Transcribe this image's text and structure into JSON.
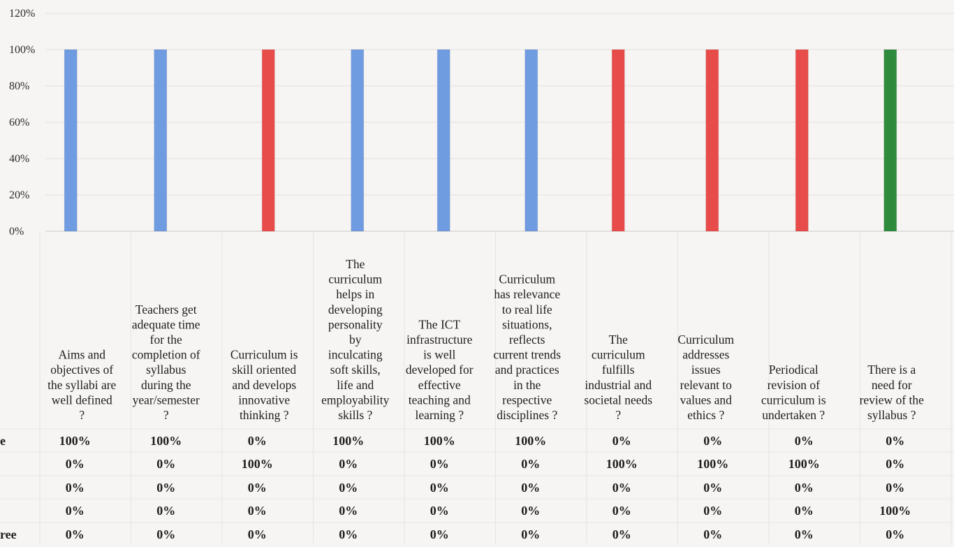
{
  "chart_data": {
    "type": "bar",
    "title": "",
    "xlabel": "",
    "ylabel": "",
    "ylim": [
      0,
      120
    ],
    "y_ticks": [
      "0%",
      "20%",
      "40%",
      "60%",
      "80%",
      "100%",
      "120%"
    ],
    "grid": true,
    "legend": "none",
    "categories": [
      "Aims and objectives of the syllabi are well defined ?",
      "Teachers get adequate time for the completion of syllabus during the year/semester ?",
      "Curriculum is skill oriented and develops innovative thinking ?",
      "The curriculum helps in developing personality by inculcating soft skills, life and employability skills ?",
      "The ICT infrastructure is well developed for effective teaching and learning ?",
      "Curriculum has relevance to real life situations, reflects current trends and practices in the respective disciplines ?",
      "The curriculum fulfills industrial and societal needs ?",
      "Curriculum addresses issues relevant to values and ethics ?",
      "Periodical revision of curriculum is undertaken ?",
      "There is a need for review of the syllabus ?"
    ],
    "category_lines": [
      [
        "Aims and",
        "objectives of",
        "the syllabi are",
        "well defined",
        "?"
      ],
      [
        "Teachers get",
        "adequate time",
        "for the",
        "completion of",
        "syllabus",
        "during the",
        "year/semester",
        "?"
      ],
      [
        "Curriculum is",
        "skill oriented",
        "and develops",
        "innovative",
        "thinking ?"
      ],
      [
        "The",
        "curriculum",
        "helps in",
        "developing",
        "personality",
        "by",
        "inculcating",
        "soft skills,",
        "life and",
        "employability",
        "skills ?"
      ],
      [
        "The ICT",
        "infrastructure",
        "is well",
        "developed for",
        "effective",
        "teaching and",
        "learning ?"
      ],
      [
        "Curriculum",
        "has relevance",
        "to real life",
        "situations,",
        "reflects",
        "current trends",
        "and practices",
        "in the",
        "respective",
        "disciplines ?"
      ],
      [
        "The",
        "curriculum",
        "fulfills",
        "industrial and",
        "societal needs",
        "?"
      ],
      [
        "Curriculum",
        "addresses",
        "issues",
        "relevant to",
        "values and",
        "ethics ?"
      ],
      [
        "Periodical",
        "revision of",
        "curriculum is",
        "undertaken ?"
      ],
      [
        "There is a",
        "need for",
        "review of the",
        "syllabus ?"
      ]
    ],
    "series": [
      {
        "name": "e",
        "color": "#6f9be0",
        "values": [
          100,
          100,
          0,
          100,
          100,
          100,
          0,
          0,
          0,
          0
        ],
        "labels": [
          "100%",
          "100%",
          "0%",
          "100%",
          "100%",
          "100%",
          "0%",
          "0%",
          "0%",
          "0%"
        ]
      },
      {
        "name": "",
        "color": "#e84c4a",
        "values": [
          0,
          0,
          100,
          0,
          0,
          0,
          100,
          100,
          100,
          0
        ],
        "labels": [
          "0%",
          "0%",
          "100%",
          "0%",
          "0%",
          "0%",
          "100%",
          "100%",
          "100%",
          "0%"
        ]
      },
      {
        "name": "",
        "color": "#9a9a9a",
        "values": [
          0,
          0,
          0,
          0,
          0,
          0,
          0,
          0,
          0,
          0
        ],
        "labels": [
          "0%",
          "0%",
          "0%",
          "0%",
          "0%",
          "0%",
          "0%",
          "0%",
          "0%",
          "0%"
        ]
      },
      {
        "name": "",
        "color": "#2e8b3e",
        "values": [
          0,
          0,
          0,
          0,
          0,
          0,
          0,
          0,
          0,
          100
        ],
        "labels": [
          "0%",
          "0%",
          "0%",
          "0%",
          "0%",
          "0%",
          "0%",
          "0%",
          "0%",
          "100%"
        ]
      },
      {
        "name": "ree",
        "color": "#e0a020",
        "values": [
          0,
          0,
          0,
          0,
          0,
          0,
          0,
          0,
          0,
          0
        ],
        "labels": [
          "0%",
          "0%",
          "0%",
          "0%",
          "0%",
          "0%",
          "0%",
          "0%",
          "0%",
          "0%"
        ]
      }
    ]
  }
}
